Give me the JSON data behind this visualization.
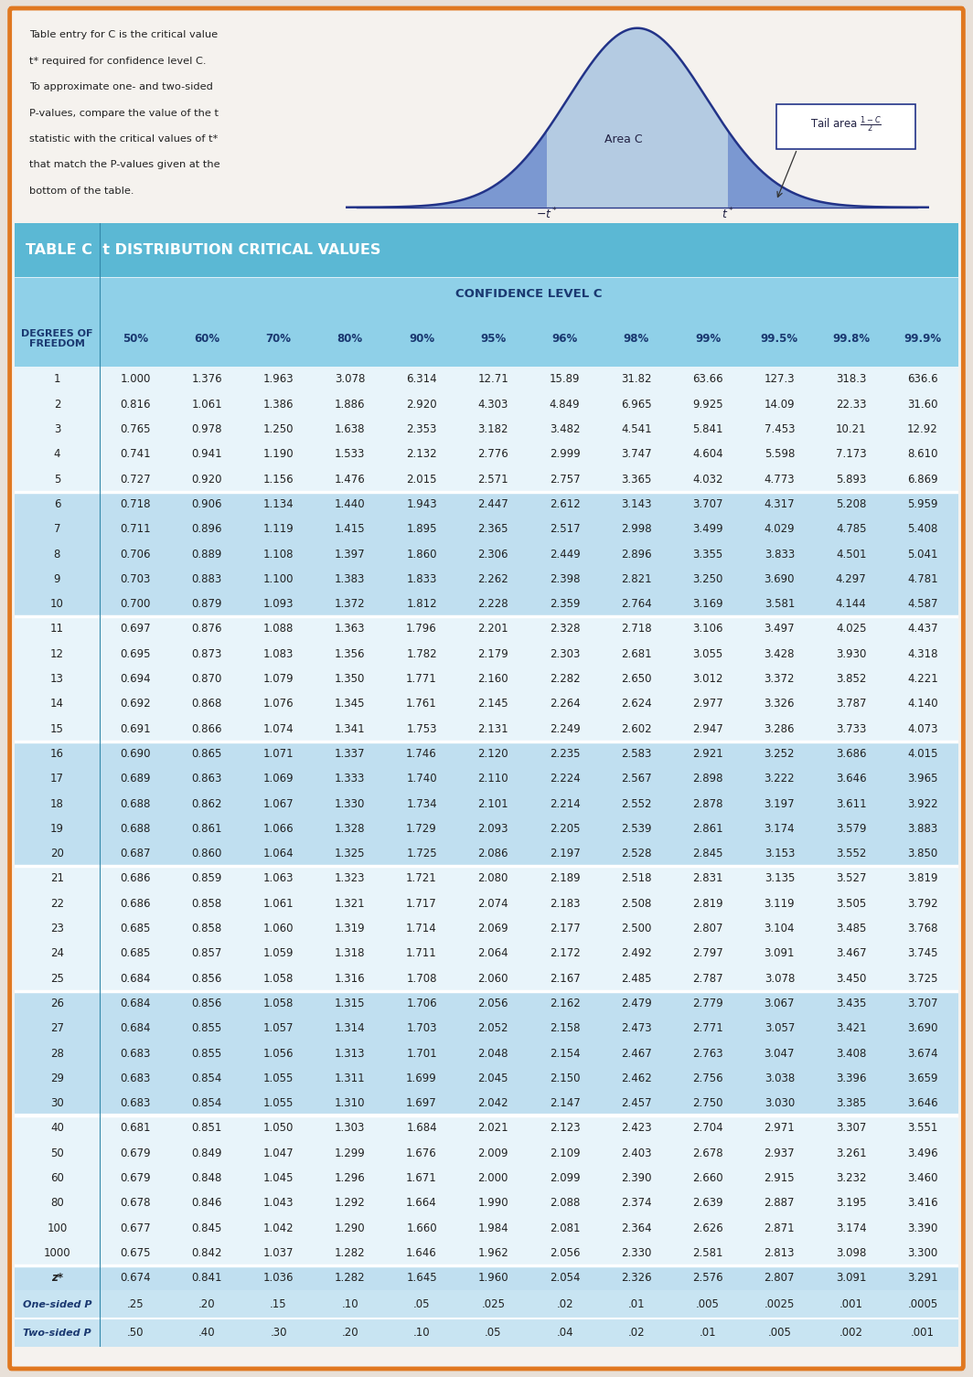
{
  "title": "TABLE C  t DISTRIBUTION CRITICAL VALUES",
  "confidence_header": "CONFIDENCE LEVEL C",
  "col_headers": [
    "50%",
    "60%",
    "70%",
    "80%",
    "90%",
    "95%",
    "96%",
    "98%",
    "99%",
    "99.5%",
    "99.8%",
    "99.9%"
  ],
  "df_label": "DEGREES OF\nFREEDOM",
  "rows": [
    [
      "1",
      "1.000",
      "1.376",
      "1.963",
      "3.078",
      "6.314",
      "12.71",
      "15.89",
      "31.82",
      "63.66",
      "127.3",
      "318.3",
      "636.6"
    ],
    [
      "2",
      "0.816",
      "1.061",
      "1.386",
      "1.886",
      "2.920",
      "4.303",
      "4.849",
      "6.965",
      "9.925",
      "14.09",
      "22.33",
      "31.60"
    ],
    [
      "3",
      "0.765",
      "0.978",
      "1.250",
      "1.638",
      "2.353",
      "3.182",
      "3.482",
      "4.541",
      "5.841",
      "7.453",
      "10.21",
      "12.92"
    ],
    [
      "4",
      "0.741",
      "0.941",
      "1.190",
      "1.533",
      "2.132",
      "2.776",
      "2.999",
      "3.747",
      "4.604",
      "5.598",
      "7.173",
      "8.610"
    ],
    [
      "5",
      "0.727",
      "0.920",
      "1.156",
      "1.476",
      "2.015",
      "2.571",
      "2.757",
      "3.365",
      "4.032",
      "4.773",
      "5.893",
      "6.869"
    ],
    [
      "6",
      "0.718",
      "0.906",
      "1.134",
      "1.440",
      "1.943",
      "2.447",
      "2.612",
      "3.143",
      "3.707",
      "4.317",
      "5.208",
      "5.959"
    ],
    [
      "7",
      "0.711",
      "0.896",
      "1.119",
      "1.415",
      "1.895",
      "2.365",
      "2.517",
      "2.998",
      "3.499",
      "4.029",
      "4.785",
      "5.408"
    ],
    [
      "8",
      "0.706",
      "0.889",
      "1.108",
      "1.397",
      "1.860",
      "2.306",
      "2.449",
      "2.896",
      "3.355",
      "3.833",
      "4.501",
      "5.041"
    ],
    [
      "9",
      "0.703",
      "0.883",
      "1.100",
      "1.383",
      "1.833",
      "2.262",
      "2.398",
      "2.821",
      "3.250",
      "3.690",
      "4.297",
      "4.781"
    ],
    [
      "10",
      "0.700",
      "0.879",
      "1.093",
      "1.372",
      "1.812",
      "2.228",
      "2.359",
      "2.764",
      "3.169",
      "3.581",
      "4.144",
      "4.587"
    ],
    [
      "11",
      "0.697",
      "0.876",
      "1.088",
      "1.363",
      "1.796",
      "2.201",
      "2.328",
      "2.718",
      "3.106",
      "3.497",
      "4.025",
      "4.437"
    ],
    [
      "12",
      "0.695",
      "0.873",
      "1.083",
      "1.356",
      "1.782",
      "2.179",
      "2.303",
      "2.681",
      "3.055",
      "3.428",
      "3.930",
      "4.318"
    ],
    [
      "13",
      "0.694",
      "0.870",
      "1.079",
      "1.350",
      "1.771",
      "2.160",
      "2.282",
      "2.650",
      "3.012",
      "3.372",
      "3.852",
      "4.221"
    ],
    [
      "14",
      "0.692",
      "0.868",
      "1.076",
      "1.345",
      "1.761",
      "2.145",
      "2.264",
      "2.624",
      "2.977",
      "3.326",
      "3.787",
      "4.140"
    ],
    [
      "15",
      "0.691",
      "0.866",
      "1.074",
      "1.341",
      "1.753",
      "2.131",
      "2.249",
      "2.602",
      "2.947",
      "3.286",
      "3.733",
      "4.073"
    ],
    [
      "16",
      "0.690",
      "0.865",
      "1.071",
      "1.337",
      "1.746",
      "2.120",
      "2.235",
      "2.583",
      "2.921",
      "3.252",
      "3.686",
      "4.015"
    ],
    [
      "17",
      "0.689",
      "0.863",
      "1.069",
      "1.333",
      "1.740",
      "2.110",
      "2.224",
      "2.567",
      "2.898",
      "3.222",
      "3.646",
      "3.965"
    ],
    [
      "18",
      "0.688",
      "0.862",
      "1.067",
      "1.330",
      "1.734",
      "2.101",
      "2.214",
      "2.552",
      "2.878",
      "3.197",
      "3.611",
      "3.922"
    ],
    [
      "19",
      "0.688",
      "0.861",
      "1.066",
      "1.328",
      "1.729",
      "2.093",
      "2.205",
      "2.539",
      "2.861",
      "3.174",
      "3.579",
      "3.883"
    ],
    [
      "20",
      "0.687",
      "0.860",
      "1.064",
      "1.325",
      "1.725",
      "2.086",
      "2.197",
      "2.528",
      "2.845",
      "3.153",
      "3.552",
      "3.850"
    ],
    [
      "21",
      "0.686",
      "0.859",
      "1.063",
      "1.323",
      "1.721",
      "2.080",
      "2.189",
      "2.518",
      "2.831",
      "3.135",
      "3.527",
      "3.819"
    ],
    [
      "22",
      "0.686",
      "0.858",
      "1.061",
      "1.321",
      "1.717",
      "2.074",
      "2.183",
      "2.508",
      "2.819",
      "3.119",
      "3.505",
      "3.792"
    ],
    [
      "23",
      "0.685",
      "0.858",
      "1.060",
      "1.319",
      "1.714",
      "2.069",
      "2.177",
      "2.500",
      "2.807",
      "3.104",
      "3.485",
      "3.768"
    ],
    [
      "24",
      "0.685",
      "0.857",
      "1.059",
      "1.318",
      "1.711",
      "2.064",
      "2.172",
      "2.492",
      "2.797",
      "3.091",
      "3.467",
      "3.745"
    ],
    [
      "25",
      "0.684",
      "0.856",
      "1.058",
      "1.316",
      "1.708",
      "2.060",
      "2.167",
      "2.485",
      "2.787",
      "3.078",
      "3.450",
      "3.725"
    ],
    [
      "26",
      "0.684",
      "0.856",
      "1.058",
      "1.315",
      "1.706",
      "2.056",
      "2.162",
      "2.479",
      "2.779",
      "3.067",
      "3.435",
      "3.707"
    ],
    [
      "27",
      "0.684",
      "0.855",
      "1.057",
      "1.314",
      "1.703",
      "2.052",
      "2.158",
      "2.473",
      "2.771",
      "3.057",
      "3.421",
      "3.690"
    ],
    [
      "28",
      "0.683",
      "0.855",
      "1.056",
      "1.313",
      "1.701",
      "2.048",
      "2.154",
      "2.467",
      "2.763",
      "3.047",
      "3.408",
      "3.674"
    ],
    [
      "29",
      "0.683",
      "0.854",
      "1.055",
      "1.311",
      "1.699",
      "2.045",
      "2.150",
      "2.462",
      "2.756",
      "3.038",
      "3.396",
      "3.659"
    ],
    [
      "30",
      "0.683",
      "0.854",
      "1.055",
      "1.310",
      "1.697",
      "2.042",
      "2.147",
      "2.457",
      "2.750",
      "3.030",
      "3.385",
      "3.646"
    ],
    [
      "40",
      "0.681",
      "0.851",
      "1.050",
      "1.303",
      "1.684",
      "2.021",
      "2.123",
      "2.423",
      "2.704",
      "2.971",
      "3.307",
      "3.551"
    ],
    [
      "50",
      "0.679",
      "0.849",
      "1.047",
      "1.299",
      "1.676",
      "2.009",
      "2.109",
      "2.403",
      "2.678",
      "2.937",
      "3.261",
      "3.496"
    ],
    [
      "60",
      "0.679",
      "0.848",
      "1.045",
      "1.296",
      "1.671",
      "2.000",
      "2.099",
      "2.390",
      "2.660",
      "2.915",
      "3.232",
      "3.460"
    ],
    [
      "80",
      "0.678",
      "0.846",
      "1.043",
      "1.292",
      "1.664",
      "1.990",
      "2.088",
      "2.374",
      "2.639",
      "2.887",
      "3.195",
      "3.416"
    ],
    [
      "100",
      "0.677",
      "0.845",
      "1.042",
      "1.290",
      "1.660",
      "1.984",
      "2.081",
      "2.364",
      "2.626",
      "2.871",
      "3.174",
      "3.390"
    ],
    [
      "1000",
      "0.675",
      "0.842",
      "1.037",
      "1.282",
      "1.646",
      "1.962",
      "2.056",
      "2.330",
      "2.581",
      "2.813",
      "3.098",
      "3.300"
    ],
    [
      "z*",
      "0.674",
      "0.841",
      "1.036",
      "1.282",
      "1.645",
      "1.960",
      "2.054",
      "2.326",
      "2.576",
      "2.807",
      "3.091",
      "3.291"
    ]
  ],
  "onesided_label": "One-sided P",
  "twosided_label": "Two-sided P",
  "onesided_vals": [
    ".25",
    ".20",
    ".15",
    ".10",
    ".05",
    ".025",
    ".02",
    ".01",
    ".005",
    ".0025",
    ".001",
    ".0005"
  ],
  "twosided_vals": [
    ".50",
    ".40",
    ".30",
    ".20",
    ".10",
    ".05",
    ".04",
    ".02",
    ".01",
    ".005",
    ".002",
    ".001"
  ],
  "outer_border": "#e07820",
  "title_bg": "#5bb8d4",
  "header_bg": "#8fd0e8",
  "row_light": "#e8f4fa",
  "row_medium": "#c0dff0",
  "row_blue": "#b8d8ec",
  "footer_bg": "#c8e4f2",
  "figure_bg": "#e8e0d8",
  "page_bg": "#f5f2ee",
  "bell_bg": "#c8dff0",
  "desc_text_lines": [
    "Table entry for C is the critical value",
    "t* required for confidence level C.",
    "To approximate one- and two-sided",
    "P-values, compare the value of the t",
    "statistic with the critical values of t*",
    "that match the P-values given at the",
    "bottom of the table."
  ]
}
